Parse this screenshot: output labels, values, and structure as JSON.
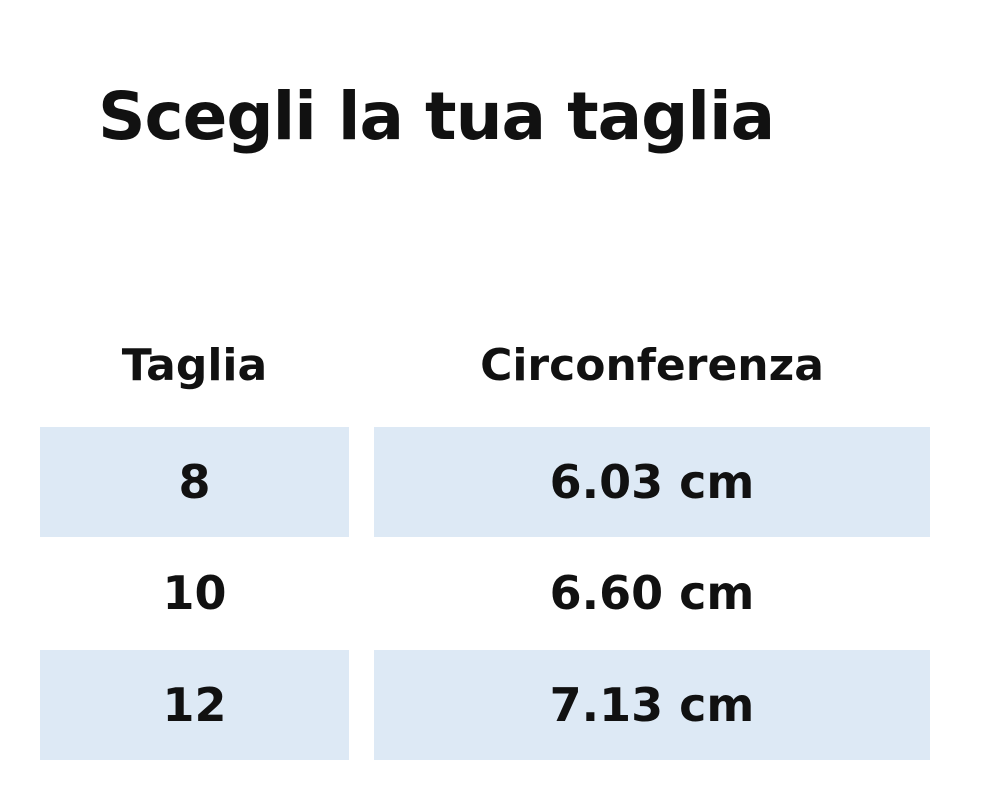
{
  "title": "Scegli la tua taglia",
  "table": {
    "headers": [
      "Taglia",
      "Circonferenza"
    ],
    "rows": [
      {
        "size": "8",
        "circumference": "6.03 cm"
      },
      {
        "size": "10",
        "circumference": "6.60 cm"
      },
      {
        "size": "12",
        "circumference": "7.13 cm"
      }
    ],
    "shade_color": "#dde9f5"
  }
}
